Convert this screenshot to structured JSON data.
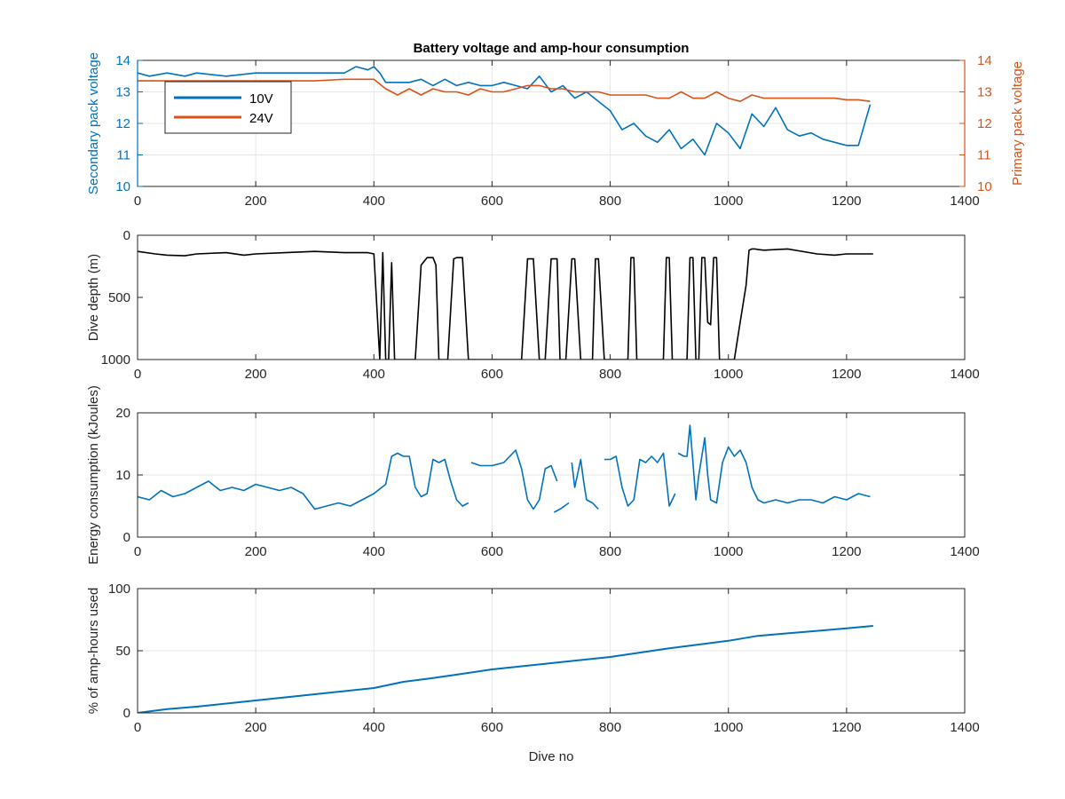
{
  "colors": {
    "blue": "#0072BD",
    "orange": "#D95319",
    "black": "#000000",
    "grid": "#e6e6e6",
    "axis": "#262626"
  },
  "chart_data": [
    {
      "type": "line",
      "title": "Battery voltage and amp-hour consumption",
      "xlabel": "",
      "ylabel": "Secondary pack voltage",
      "ylabel_right": "Primary pack voltage",
      "xlim": [
        0,
        1400
      ],
      "ylim": [
        10,
        14
      ],
      "ylim_right": [
        10,
        14
      ],
      "xticks": [
        0,
        200,
        400,
        600,
        800,
        1000,
        1200,
        1400
      ],
      "yticks": [
        10,
        11,
        12,
        13,
        14
      ],
      "yticks_right": [
        10,
        11,
        12,
        13,
        14
      ],
      "grid": true,
      "legend": "top-left",
      "series": [
        {
          "name": "10V",
          "color": "#0072BD",
          "x": [
            0,
            20,
            50,
            80,
            100,
            150,
            200,
            250,
            300,
            350,
            370,
            390,
            400,
            410,
            420,
            440,
            460,
            480,
            500,
            520,
            540,
            560,
            580,
            600,
            620,
            640,
            660,
            680,
            700,
            720,
            740,
            760,
            780,
            800,
            820,
            840,
            860,
            880,
            900,
            920,
            940,
            960,
            980,
            1000,
            1020,
            1040,
            1060,
            1080,
            1100,
            1120,
            1140,
            1160,
            1180,
            1200,
            1220,
            1240
          ],
          "y": [
            13.6,
            13.5,
            13.6,
            13.5,
            13.6,
            13.5,
            13.6,
            13.6,
            13.6,
            13.6,
            13.8,
            13.7,
            13.8,
            13.6,
            13.3,
            13.3,
            13.3,
            13.4,
            13.2,
            13.4,
            13.2,
            13.3,
            13.2,
            13.2,
            13.3,
            13.2,
            13.1,
            13.5,
            13.0,
            13.2,
            12.8,
            13.0,
            12.7,
            12.4,
            11.8,
            12.0,
            11.6,
            11.4,
            11.8,
            11.2,
            11.5,
            11.0,
            12.0,
            11.7,
            11.2,
            12.3,
            11.9,
            12.5,
            11.8,
            11.6,
            11.7,
            11.5,
            11.4,
            11.3,
            11.3,
            12.6
          ]
        },
        {
          "name": "24V",
          "color": "#D95319",
          "axis": "right",
          "x": [
            0,
            50,
            100,
            150,
            200,
            250,
            300,
            350,
            400,
            420,
            440,
            460,
            480,
            500,
            520,
            540,
            560,
            580,
            600,
            620,
            640,
            660,
            680,
            700,
            720,
            740,
            760,
            780,
            800,
            820,
            840,
            860,
            880,
            900,
            920,
            940,
            960,
            980,
            1000,
            1020,
            1040,
            1060,
            1080,
            1100,
            1120,
            1140,
            1160,
            1180,
            1200,
            1220,
            1240
          ],
          "y": [
            13.35,
            13.35,
            13.35,
            13.35,
            13.35,
            13.35,
            13.35,
            13.4,
            13.4,
            13.1,
            12.9,
            13.1,
            12.9,
            13.1,
            13.0,
            13.0,
            12.9,
            13.1,
            13.0,
            13.0,
            13.1,
            13.2,
            13.2,
            13.1,
            13.1,
            13.0,
            13.0,
            13.0,
            12.9,
            12.9,
            12.9,
            12.9,
            12.8,
            12.8,
            13.0,
            12.8,
            12.8,
            13.0,
            12.8,
            12.7,
            12.9,
            12.8,
            12.8,
            12.8,
            12.8,
            12.8,
            12.8,
            12.8,
            12.75,
            12.75,
            12.7
          ]
        }
      ]
    },
    {
      "type": "line",
      "title": "",
      "xlabel": "",
      "ylabel": "Dive depth (m)",
      "xlim": [
        0,
        1400
      ],
      "ylim": [
        0,
        1000
      ],
      "y_reversed": true,
      "xticks": [
        0,
        200,
        400,
        600,
        800,
        1000,
        1200,
        1400
      ],
      "yticks": [
        0,
        500,
        1000
      ],
      "grid": false,
      "series": [
        {
          "color": "#000000",
          "x": [
            0,
            30,
            50,
            80,
            100,
            150,
            180,
            200,
            250,
            300,
            350,
            390,
            400,
            410,
            415,
            420,
            425,
            430,
            435,
            440,
            470,
            480,
            490,
            500,
            505,
            510,
            525,
            535,
            540,
            550,
            560,
            570,
            600,
            630,
            650,
            660,
            670,
            680,
            690,
            700,
            710,
            715,
            725,
            735,
            740,
            750,
            770,
            775,
            780,
            790,
            795,
            800,
            830,
            835,
            840,
            845,
            850,
            860,
            890,
            895,
            900,
            905,
            910,
            920,
            930,
            935,
            940,
            945,
            950,
            955,
            960,
            965,
            970,
            975,
            980,
            985,
            990,
            995,
            1000,
            1010,
            1020,
            1030,
            1035,
            1040,
            1045,
            1050,
            1060,
            1100,
            1150,
            1180,
            1200,
            1220,
            1245
          ],
          "y": [
            130,
            150,
            160,
            165,
            150,
            140,
            160,
            150,
            140,
            130,
            140,
            140,
            150,
            1000,
            140,
            1000,
            1000,
            220,
            1000,
            1000,
            1000,
            240,
            180,
            180,
            240,
            1000,
            1000,
            190,
            180,
            180,
            1000,
            1000,
            1000,
            1000,
            1000,
            190,
            190,
            1000,
            1000,
            190,
            190,
            1000,
            1000,
            190,
            190,
            1000,
            1000,
            190,
            190,
            1000,
            1000,
            1000,
            1000,
            180,
            180,
            1000,
            1000,
            1000,
            1000,
            180,
            180,
            1000,
            1000,
            1000,
            1000,
            180,
            180,
            1000,
            1000,
            180,
            180,
            700,
            720,
            180,
            180,
            1000,
            1000,
            1000,
            1000,
            1000,
            700,
            400,
            120,
            110,
            110,
            115,
            120,
            110,
            150,
            160,
            150,
            150,
            150
          ]
        }
      ]
    },
    {
      "type": "line",
      "title": "",
      "xlabel": "",
      "ylabel": "Energy consumption (kJoules)",
      "xlim": [
        0,
        1400
      ],
      "ylim": [
        0,
        20
      ],
      "xticks": [
        0,
        200,
        400,
        600,
        800,
        1000,
        1200,
        1400
      ],
      "yticks": [
        0,
        10,
        20
      ],
      "grid": true,
      "series": [
        {
          "color": "#0072BD",
          "x": [
            0,
            20,
            40,
            60,
            80,
            100,
            120,
            140,
            160,
            180,
            200,
            220,
            240,
            260,
            280,
            300,
            320,
            340,
            360,
            380,
            400,
            420,
            430,
            440,
            450,
            460,
            470,
            480,
            490,
            500,
            510,
            520,
            530,
            540,
            550,
            560
          ],
          "y": [
            6.5,
            6.0,
            7.5,
            6.5,
            7.0,
            8.0,
            9.0,
            7.5,
            8.0,
            7.5,
            8.5,
            8.0,
            7.5,
            8.0,
            7.0,
            4.5,
            5.0,
            5.5,
            5.0,
            6.0,
            7.0,
            8.5,
            13.0,
            13.5,
            13.0,
            13.0,
            8.0,
            6.5,
            7.0,
            12.5,
            12.0,
            12.5,
            9.0,
            6.0,
            5.0,
            5.5
          ]
        },
        {
          "color": "#0072BD",
          "x": [
            565,
            580,
            600,
            620,
            640,
            650,
            660,
            670,
            680,
            690,
            700,
            710
          ],
          "y": [
            12.0,
            11.5,
            11.5,
            12.0,
            14.0,
            11.0,
            6.0,
            4.5,
            6.0,
            11.0,
            11.5,
            9.0
          ]
        },
        {
          "color": "#0072BD",
          "x": [
            705,
            715,
            730
          ],
          "y": [
            4.0,
            4.5,
            5.5
          ]
        },
        {
          "color": "#0072BD",
          "x": [
            735,
            740,
            750,
            755,
            760,
            770,
            780
          ],
          "y": [
            12.0,
            8.0,
            12.5,
            9.0,
            6.0,
            5.5,
            4.5
          ]
        },
        {
          "color": "#0072BD",
          "x": [
            790,
            800,
            810,
            820,
            830,
            840,
            850,
            860,
            870,
            880,
            890,
            900,
            910
          ],
          "y": [
            12.5,
            12.5,
            13.0,
            8.0,
            5.0,
            6.0,
            12.5,
            12.0,
            13.0,
            12.0,
            13.5,
            5.0,
            7.0
          ]
        },
        {
          "color": "#0072BD",
          "x": [
            915,
            925,
            930,
            935,
            940,
            945,
            950,
            955,
            960,
            965,
            970,
            980,
            990,
            1000,
            1010,
            1020,
            1030,
            1040,
            1050,
            1060,
            1080,
            1100,
            1120,
            1140,
            1160,
            1180,
            1200,
            1220,
            1240
          ],
          "y": [
            13.5,
            13.0,
            13.0,
            18.0,
            12.0,
            6.0,
            10.0,
            13.0,
            16.0,
            10.0,
            6.0,
            5.5,
            12.0,
            14.5,
            13.0,
            14.0,
            12.0,
            8.0,
            6.0,
            5.5,
            6.0,
            5.5,
            6.0,
            6.0,
            5.5,
            6.5,
            6.0,
            7.0,
            6.5
          ]
        }
      ]
    },
    {
      "type": "line",
      "title": "",
      "xlabel": "Dive no",
      "ylabel": "% of amp-hours used",
      "xlim": [
        0,
        1400
      ],
      "ylim": [
        0,
        100
      ],
      "xticks": [
        0,
        200,
        400,
        600,
        800,
        1000,
        1200,
        1400
      ],
      "yticks": [
        0,
        50,
        100
      ],
      "grid": true,
      "series": [
        {
          "color": "#0072BD",
          "x": [
            0,
            50,
            100,
            200,
            300,
            400,
            450,
            500,
            600,
            700,
            800,
            900,
            1000,
            1050,
            1100,
            1150,
            1200,
            1245
          ],
          "y": [
            0,
            3,
            5,
            10,
            15,
            20,
            25,
            28,
            35,
            40,
            45,
            52,
            58,
            62,
            64,
            66,
            68,
            70
          ]
        }
      ]
    }
  ]
}
